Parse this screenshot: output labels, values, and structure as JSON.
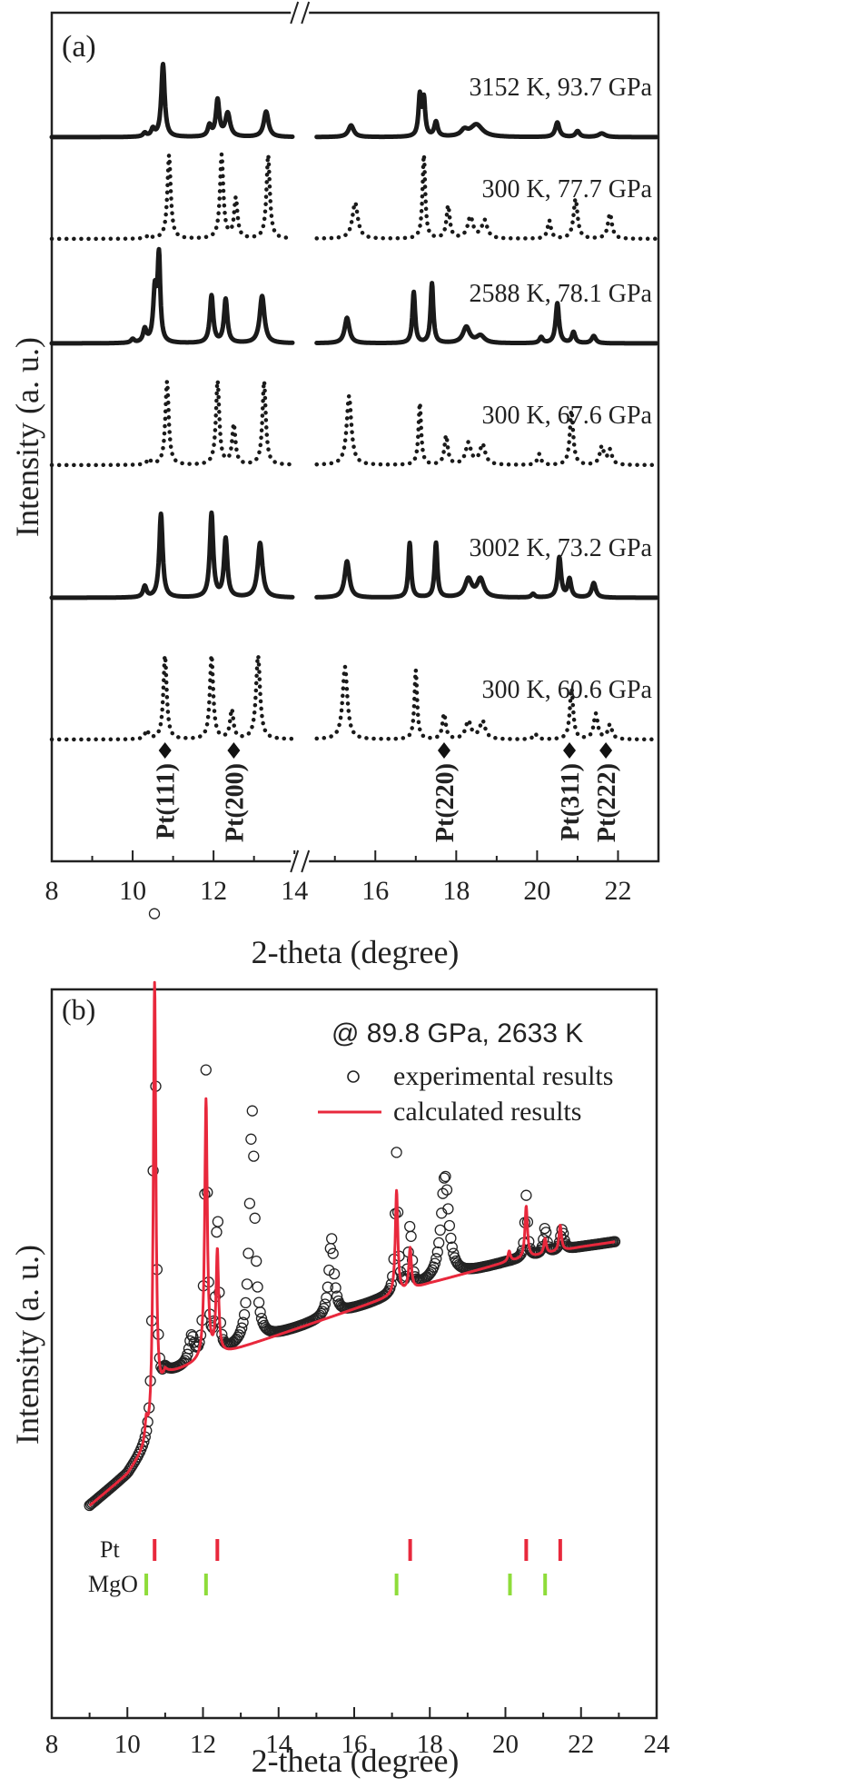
{
  "chart_data": [
    {
      "type": "line",
      "panel_label": "(a)",
      "xlabel": "2-theta (degree)",
      "ylabel": "Intensity (a. u.)",
      "xlim": [
        8,
        23
      ],
      "axis_break": [
        14,
        14.5
      ],
      "x_ticks": [
        8,
        10,
        12,
        14,
        16,
        18,
        20,
        22
      ],
      "line_color": "#1a1a1a",
      "peak_markers": [
        {
          "label": "Pt(111)",
          "x": 10.8
        },
        {
          "label": "Pt(200)",
          "x": 12.5
        },
        {
          "label": "Pt(220)",
          "x": 17.7
        },
        {
          "label": "Pt(311)",
          "x": 20.8
        },
        {
          "label": "Pt(222)",
          "x": 21.7
        }
      ],
      "series": [
        {
          "name": "3152 K, 93.7 GPa",
          "style": "solid",
          "peaks": [
            [
              10.3,
              0.05,
              0.05
            ],
            [
              10.5,
              0.1,
              0.05
            ],
            [
              10.75,
              1.0,
              0.05
            ],
            [
              11.9,
              0.15,
              0.05
            ],
            [
              12.1,
              0.5,
              0.05
            ],
            [
              12.35,
              0.32,
              0.07
            ],
            [
              13.3,
              0.35,
              0.07
            ],
            [
              15.4,
              0.16,
              0.08
            ],
            [
              17.1,
              0.55,
              0.04
            ],
            [
              17.2,
              0.5,
              0.04
            ],
            [
              17.5,
              0.2,
              0.05
            ],
            [
              18.2,
              0.08,
              0.1
            ],
            [
              18.5,
              0.17,
              0.18
            ],
            [
              20.5,
              0.2,
              0.06
            ],
            [
              21.0,
              0.08,
              0.06
            ],
            [
              21.6,
              0.05,
              0.1
            ]
          ]
        },
        {
          "name": "300 K, 77.7 GPa",
          "style": "dotted",
          "peaks": [
            [
              10.4,
              0.05,
              0.05
            ],
            [
              10.9,
              1.15,
              0.05
            ],
            [
              12.2,
              1.15,
              0.05
            ],
            [
              12.55,
              0.55,
              0.05
            ],
            [
              13.35,
              1.15,
              0.05
            ],
            [
              15.5,
              0.5,
              0.08
            ],
            [
              17.2,
              1.15,
              0.04
            ],
            [
              17.8,
              0.45,
              0.05
            ],
            [
              18.35,
              0.3,
              0.08
            ],
            [
              18.7,
              0.25,
              0.08
            ],
            [
              20.3,
              0.25,
              0.05
            ],
            [
              20.95,
              0.55,
              0.06
            ],
            [
              21.8,
              0.35,
              0.06
            ]
          ]
        },
        {
          "name": "2588 K, 78.1 GPa",
          "style": "solid",
          "peaks": [
            [
              10.0,
              0.05,
              0.05
            ],
            [
              10.3,
              0.18,
              0.05
            ],
            [
              10.55,
              0.7,
              0.05
            ],
            [
              10.65,
              1.15,
              0.04
            ],
            [
              11.95,
              0.65,
              0.05
            ],
            [
              12.3,
              0.6,
              0.05
            ],
            [
              13.2,
              0.65,
              0.07
            ],
            [
              15.3,
              0.35,
              0.07
            ],
            [
              16.95,
              0.7,
              0.04
            ],
            [
              17.4,
              0.82,
              0.04
            ],
            [
              18.25,
              0.22,
              0.1
            ],
            [
              18.6,
              0.1,
              0.12
            ],
            [
              20.1,
              0.08,
              0.05
            ],
            [
              20.5,
              0.55,
              0.05
            ],
            [
              20.9,
              0.15,
              0.05
            ],
            [
              21.4,
              0.1,
              0.06
            ]
          ]
        },
        {
          "name": "300 K, 67.6 GPa",
          "style": "dotted",
          "peaks": [
            [
              10.4,
              0.08,
              0.05
            ],
            [
              10.85,
              1.15,
              0.05
            ],
            [
              12.1,
              1.15,
              0.05
            ],
            [
              12.5,
              0.55,
              0.05
            ],
            [
              13.25,
              1.15,
              0.05
            ],
            [
              15.35,
              0.95,
              0.07
            ],
            [
              17.1,
              0.85,
              0.04
            ],
            [
              17.75,
              0.4,
              0.05
            ],
            [
              18.3,
              0.3,
              0.08
            ],
            [
              18.65,
              0.28,
              0.08
            ],
            [
              20.05,
              0.15,
              0.05
            ],
            [
              20.85,
              0.75,
              0.05
            ],
            [
              21.6,
              0.25,
              0.06
            ],
            [
              21.8,
              0.2,
              0.06
            ]
          ]
        },
        {
          "name": "3002 K, 73.2 GPa",
          "style": "solid",
          "peaks": [
            [
              10.3,
              0.15,
              0.05
            ],
            [
              10.7,
              1.15,
              0.05
            ],
            [
              11.95,
              1.15,
              0.05
            ],
            [
              12.3,
              0.8,
              0.05
            ],
            [
              13.15,
              0.75,
              0.07
            ],
            [
              15.3,
              0.5,
              0.07
            ],
            [
              16.85,
              0.75,
              0.04
            ],
            [
              17.5,
              0.75,
              0.04
            ],
            [
              18.3,
              0.25,
              0.1
            ],
            [
              18.6,
              0.25,
              0.1
            ],
            [
              19.9,
              0.05,
              0.05
            ],
            [
              20.55,
              0.55,
              0.05
            ],
            [
              20.8,
              0.25,
              0.05
            ],
            [
              21.4,
              0.2,
              0.06
            ]
          ]
        },
        {
          "name": "300 K, 60.6 GPa",
          "style": "dotted",
          "peaks": [
            [
              10.35,
              0.12,
              0.05
            ],
            [
              10.8,
              1.15,
              0.05
            ],
            [
              11.95,
              1.15,
              0.05
            ],
            [
              12.45,
              0.4,
              0.05
            ],
            [
              13.1,
              1.15,
              0.06
            ],
            [
              15.25,
              1.0,
              0.07
            ],
            [
              17.0,
              0.95,
              0.04
            ],
            [
              17.7,
              0.35,
              0.05
            ],
            [
              18.3,
              0.25,
              0.08
            ],
            [
              18.65,
              0.25,
              0.08
            ],
            [
              19.95,
              0.08,
              0.05
            ],
            [
              20.85,
              0.7,
              0.05
            ],
            [
              21.45,
              0.35,
              0.06
            ],
            [
              21.8,
              0.2,
              0.06
            ]
          ]
        }
      ]
    },
    {
      "type": "scatter",
      "panel_label": "(b)",
      "title": "@ 89.8 GPa, 2633 K",
      "xlabel": "2-theta (degree)",
      "ylabel": "Intensity (a. u.)",
      "xlim": [
        8,
        24
      ],
      "x_ticks": [
        8,
        10,
        12,
        14,
        16,
        18,
        20,
        22,
        24
      ],
      "legend": [
        {
          "label": "experimental results",
          "marker": "open-circle",
          "color": "#222222"
        },
        {
          "label": "calculated results",
          "marker": "line",
          "color": "#e8283c"
        }
      ],
      "background": {
        "x": [
          9.0,
          10.0,
          10.6,
          11.0,
          12.0,
          14.0,
          16.0,
          18.0,
          20.0,
          22.0,
          22.9
        ],
        "y": [
          0.05,
          0.11,
          0.17,
          0.3,
          0.33,
          0.38,
          0.43,
          0.48,
          0.52,
          0.55,
          0.56
        ]
      },
      "calculated_peaks": [
        [
          10.72,
          0.85,
          0.04
        ],
        [
          12.08,
          0.5,
          0.04
        ],
        [
          12.38,
          0.2,
          0.04
        ],
        [
          17.12,
          0.2,
          0.04
        ],
        [
          17.48,
          0.08,
          0.04
        ],
        [
          20.55,
          0.1,
          0.04
        ],
        [
          21.45,
          0.05,
          0.04
        ],
        [
          10.5,
          0.04,
          0.04
        ],
        [
          20.1,
          0.02,
          0.04
        ],
        [
          21.05,
          0.03,
          0.04
        ]
      ],
      "experimental_peaks": [
        [
          10.72,
          1.0,
          0.04
        ],
        [
          12.08,
          0.55,
          0.04
        ],
        [
          12.38,
          0.28,
          0.04
        ],
        [
          13.3,
          0.45,
          0.08
        ],
        [
          15.4,
          0.15,
          0.08
        ],
        [
          17.12,
          0.27,
          0.04
        ],
        [
          17.48,
          0.12,
          0.05
        ],
        [
          18.4,
          0.2,
          0.12
        ],
        [
          20.55,
          0.12,
          0.04
        ],
        [
          21.05,
          0.05,
          0.05
        ],
        [
          21.5,
          0.04,
          0.06
        ],
        [
          11.7,
          0.05,
          0.08
        ]
      ],
      "phase_ticks": [
        {
          "phase": "Pt",
          "color": "#e8283c",
          "x": [
            10.72,
            12.38,
            17.48,
            20.55,
            21.45
          ]
        },
        {
          "phase": "MgO",
          "color": "#8edc3a",
          "x": [
            10.5,
            12.08,
            17.12,
            20.12,
            21.05
          ]
        }
      ]
    }
  ]
}
